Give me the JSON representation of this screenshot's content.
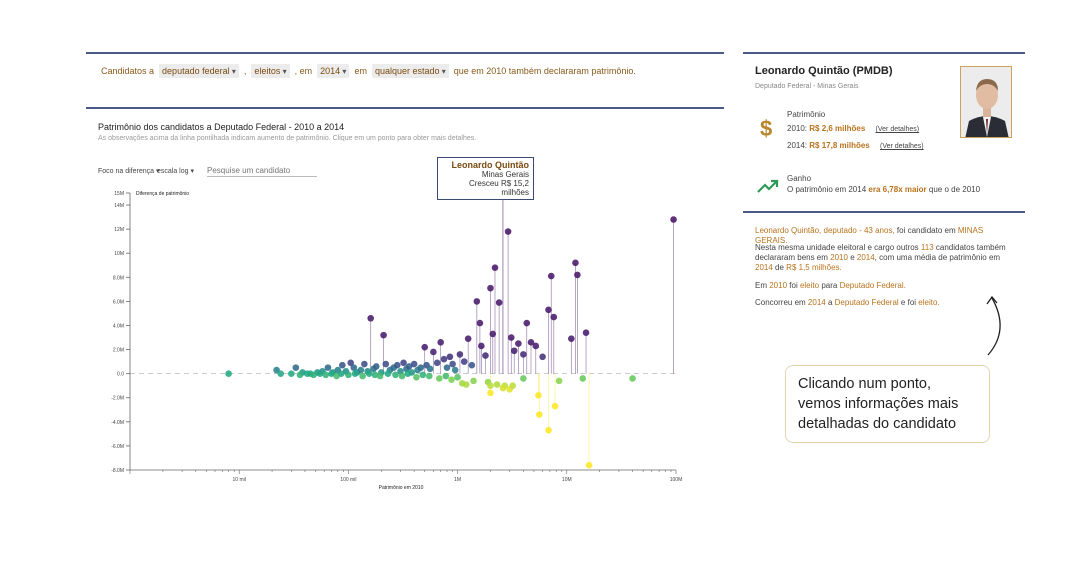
{
  "filters": {
    "prefix": "Candidatos a",
    "cargo": "deputado federal",
    "sep1": ",",
    "situacao": "eleitos",
    "sep2": ", em",
    "ano": "2014",
    "em": "em",
    "estado": "qualquer estado",
    "suffix": "que em 2010 também declararam patrimônio."
  },
  "controls": {
    "foco": "Foco na diferença",
    "escala": "escala log",
    "search_placeholder": "Pesquise um candidato"
  },
  "tooltip": {
    "name": "Leonardo Quintão",
    "state": "Minas Gerais",
    "growth": "Cresceu R$ 15,2 milhões"
  },
  "profile": {
    "name": "Leonardo Quintão (PMDB)",
    "role": "Deputado Federal - Minas Gerais",
    "patrimonio_label": "Patrimônio",
    "y2010_label": "2010:",
    "y2010_value": "R$ 2,6 milhões",
    "y2014_label": "2014:",
    "y2014_value": "R$ 17,8 milhões",
    "details_link": "(Ver detalhes)",
    "ganho_label": "Ganho",
    "ganho_pre": "O patrimônio em 2014",
    "ganho_value": "era 6,78x maior",
    "ganho_post": "que o de 2010",
    "colors": {
      "accent": "#b8731c",
      "rule": "#4a5a86",
      "gain": "#2e9a5a"
    }
  },
  "story": {
    "p1_a": "Leonardo Quintão, deputado - 43 anos,",
    "p1_b": "foi candidato em",
    "p1_c": "MINAS GERAIS.",
    "p2_a": "Nesta mesma unidade eleitoral e cargo outros",
    "p2_b": "113",
    "p2_c": "candidatos também declararam bens em",
    "p2_d": "2010",
    "p2_e": "e",
    "p2_f": "2014",
    "p2_g": ", com uma média de patrimônio em",
    "p2_h": "2014",
    "p2_i": "de",
    "p2_j": "R$ 1,5 milhões.",
    "p3_a": "Em",
    "p3_b": "2010",
    "p3_c": "foi",
    "p3_d": "eleito",
    "p3_e": "para",
    "p3_f": "Deputado Federal.",
    "p4_a": "Concorreu em",
    "p4_b": "2014",
    "p4_c": "a",
    "p4_d": "Deputado Federal",
    "p4_e": "e foi",
    "p4_f": "eleito."
  },
  "callout": {
    "text": "Clicando num ponto, vemos informações mais detalhadas do candidato"
  },
  "chart_data": {
    "type": "scatter",
    "title": "Patrimônio dos candidatos a Deputado Federal - 2010 a 2014",
    "subtitle": "As observações acima da linha pontilhada indicam aumento de patrimônio. Clique em um ponto para obter mais detalhes.",
    "xlabel": "Patrimônio em 2010",
    "ylabel": "Diferença de patrimônio",
    "x_scale": "log",
    "xlim": [
      1000,
      100000000
    ],
    "ylim": [
      -8000000,
      15000000
    ],
    "x_ticks": [
      {
        "v": 10000,
        "label": "10 mil"
      },
      {
        "v": 100000,
        "label": "100 mil"
      },
      {
        "v": 1000000,
        "label": "1M"
      },
      {
        "v": 10000000,
        "label": "10M"
      },
      {
        "v": 100000000,
        "label": "100M"
      }
    ],
    "y_ticks": [
      {
        "v": 15000000,
        "label": "15M"
      },
      {
        "v": 14000000,
        "label": "14M"
      },
      {
        "v": 12000000,
        "label": "12M"
      },
      {
        "v": 10000000,
        "label": "10M"
      },
      {
        "v": 8000000,
        "label": "8.0M"
      },
      {
        "v": 6000000,
        "label": "6.0M"
      },
      {
        "v": 4000000,
        "label": "4.0M"
      },
      {
        "v": 2000000,
        "label": "2.0M"
      },
      {
        "v": 0,
        "label": "0.0"
      },
      {
        "v": -2000000,
        "label": "-2.0M"
      },
      {
        "v": -4000000,
        "label": "-4.0M"
      },
      {
        "v": -6000000,
        "label": "-6.0M"
      },
      {
        "v": -8000000,
        "label": "-8.0M"
      }
    ],
    "highlight": {
      "x": 2600000,
      "y": 15200000
    },
    "points": [
      {
        "x": 8000,
        "y": 0
      },
      {
        "x": 22000,
        "y": 300000
      },
      {
        "x": 24000,
        "y": 0
      },
      {
        "x": 33000,
        "y": 500000
      },
      {
        "x": 38000,
        "y": 100000
      },
      {
        "x": 45000,
        "y": 0
      },
      {
        "x": 52000,
        "y": 100000
      },
      {
        "x": 58000,
        "y": 200000
      },
      {
        "x": 65000,
        "y": 500000
      },
      {
        "x": 72000,
        "y": 100000
      },
      {
        "x": 80000,
        "y": 300000
      },
      {
        "x": 88000,
        "y": 700000
      },
      {
        "x": 95000,
        "y": 200000
      },
      {
        "x": 105000,
        "y": 900000
      },
      {
        "x": 112000,
        "y": 500000
      },
      {
        "x": 120000,
        "y": 100000
      },
      {
        "x": 130000,
        "y": 300000
      },
      {
        "x": 140000,
        "y": 800000
      },
      {
        "x": 150000,
        "y": 200000
      },
      {
        "x": 160000,
        "y": 4600000
      },
      {
        "x": 170000,
        "y": 400000
      },
      {
        "x": 180000,
        "y": 600000
      },
      {
        "x": 200000,
        "y": 100000
      },
      {
        "x": 210000,
        "y": 3200000
      },
      {
        "x": 220000,
        "y": 800000
      },
      {
        "x": 240000,
        "y": 300000
      },
      {
        "x": 260000,
        "y": 500000
      },
      {
        "x": 280000,
        "y": 700000
      },
      {
        "x": 300000,
        "y": 200000
      },
      {
        "x": 320000,
        "y": 900000
      },
      {
        "x": 340000,
        "y": 400000
      },
      {
        "x": 360000,
        "y": 600000
      },
      {
        "x": 380000,
        "y": 100000
      },
      {
        "x": 400000,
        "y": 800000
      },
      {
        "x": 430000,
        "y": 300000
      },
      {
        "x": 460000,
        "y": 500000
      },
      {
        "x": 500000,
        "y": 2200000
      },
      {
        "x": 520000,
        "y": 700000
      },
      {
        "x": 560000,
        "y": 400000
      },
      {
        "x": 600000,
        "y": 1800000
      },
      {
        "x": 650000,
        "y": 900000
      },
      {
        "x": 700000,
        "y": 2600000
      },
      {
        "x": 750000,
        "y": 1200000
      },
      {
        "x": 800000,
        "y": 500000
      },
      {
        "x": 850000,
        "y": 1400000
      },
      {
        "x": 900000,
        "y": 800000
      },
      {
        "x": 950000,
        "y": 300000
      },
      {
        "x": 1050000,
        "y": 1600000
      },
      {
        "x": 1150000,
        "y": 1000000
      },
      {
        "x": 1250000,
        "y": 2900000
      },
      {
        "x": 1350000,
        "y": 700000
      },
      {
        "x": 1500000,
        "y": 6000000
      },
      {
        "x": 1600000,
        "y": 4200000
      },
      {
        "x": 1650000,
        "y": 2300000
      },
      {
        "x": 1800000,
        "y": 1500000
      },
      {
        "x": 2000000,
        "y": 7100000
      },
      {
        "x": 2100000,
        "y": 3300000
      },
      {
        "x": 2200000,
        "y": 8800000
      },
      {
        "x": 2400000,
        "y": 5900000
      },
      {
        "x": 2600000,
        "y": 15200000
      },
      {
        "x": 2900000,
        "y": 11800000
      },
      {
        "x": 3100000,
        "y": 3000000
      },
      {
        "x": 3300000,
        "y": 1900000
      },
      {
        "x": 3600000,
        "y": 2500000
      },
      {
        "x": 4000000,
        "y": 1600000
      },
      {
        "x": 4300000,
        "y": 4200000
      },
      {
        "x": 4700000,
        "y": 2600000
      },
      {
        "x": 5200000,
        "y": 2300000
      },
      {
        "x": 6000000,
        "y": 1400000
      },
      {
        "x": 6800000,
        "y": 5300000
      },
      {
        "x": 7200000,
        "y": 8100000
      },
      {
        "x": 7600000,
        "y": 4700000
      },
      {
        "x": 11000000,
        "y": 2900000
      },
      {
        "x": 12000000,
        "y": 9200000
      },
      {
        "x": 12500000,
        "y": 8200000
      },
      {
        "x": 15000000,
        "y": 3400000
      },
      {
        "x": 95000000,
        "y": 12800000
      },
      {
        "x": 30000,
        "y": 0
      },
      {
        "x": 36000,
        "y": -100000
      },
      {
        "x": 42000,
        "y": 0
      },
      {
        "x": 48000,
        "y": -100000
      },
      {
        "x": 55000,
        "y": 0
      },
      {
        "x": 62000,
        "y": -100000
      },
      {
        "x": 70000,
        "y": 0
      },
      {
        "x": 78000,
        "y": -200000
      },
      {
        "x": 86000,
        "y": 0
      },
      {
        "x": 100000,
        "y": -100000
      },
      {
        "x": 115000,
        "y": 0
      },
      {
        "x": 135000,
        "y": -200000
      },
      {
        "x": 155000,
        "y": 0
      },
      {
        "x": 175000,
        "y": -100000
      },
      {
        "x": 195000,
        "y": -200000
      },
      {
        "x": 230000,
        "y": 0
      },
      {
        "x": 270000,
        "y": -100000
      },
      {
        "x": 310000,
        "y": -200000
      },
      {
        "x": 350000,
        "y": 0
      },
      {
        "x": 420000,
        "y": -300000
      },
      {
        "x": 480000,
        "y": -100000
      },
      {
        "x": 550000,
        "y": -200000
      },
      {
        "x": 680000,
        "y": -400000
      },
      {
        "x": 780000,
        "y": -200000
      },
      {
        "x": 880000,
        "y": -500000
      },
      {
        "x": 1000000,
        "y": -300000
      },
      {
        "x": 1100000,
        "y": -800000
      },
      {
        "x": 1400000,
        "y": -600000
      },
      {
        "x": 1900000,
        "y": -700000
      },
      {
        "x": 2300000,
        "y": -900000
      },
      {
        "x": 2700000,
        "y": -1000000
      },
      {
        "x": 3000000,
        "y": -1300000
      },
      {
        "x": 4000000,
        "y": -400000
      },
      {
        "x": 8500000,
        "y": -600000
      },
      {
        "x": 14000000,
        "y": -400000
      },
      {
        "x": 40000000,
        "y": -400000
      },
      {
        "x": 2000000,
        "y": -1000000
      },
      {
        "x": 2600000,
        "y": -1200000
      },
      {
        "x": 3200000,
        "y": -1000000
      },
      {
        "x": 1200000,
        "y": -900000
      },
      {
        "x": 2000000,
        "y": -1600000
      },
      {
        "x": 5500000,
        "y": -1800000
      },
      {
        "x": 5600000,
        "y": -3400000
      },
      {
        "x": 6800000,
        "y": -4700000
      },
      {
        "x": 7800000,
        "y": -2700000
      },
      {
        "x": 16000000,
        "y": -7600000
      }
    ]
  }
}
